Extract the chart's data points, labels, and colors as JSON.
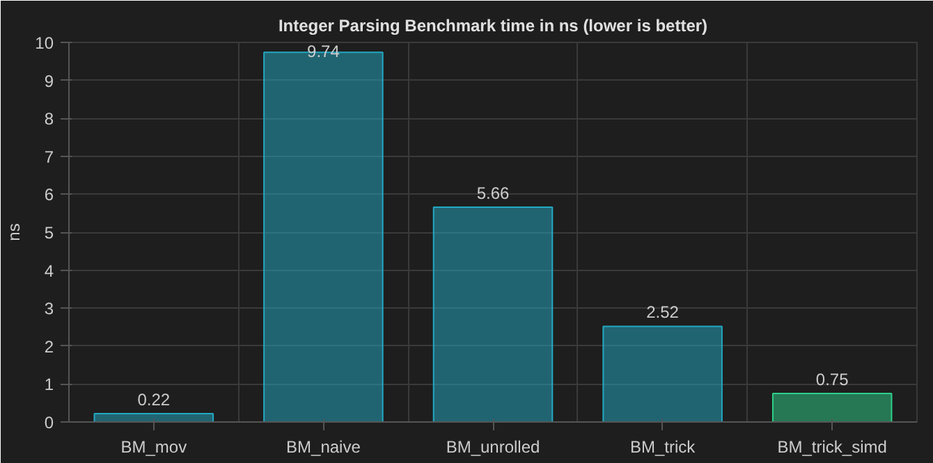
{
  "chart_data": {
    "type": "bar",
    "title": "Integer Parsing Benchmark time in ns (lower is better)",
    "ylabel": "ns",
    "categories": [
      "BM_mov",
      "BM_naive",
      "BM_unrolled",
      "BM_trick",
      "BM_trick_simd"
    ],
    "values": [
      0.22,
      9.74,
      5.66,
      2.52,
      0.75
    ],
    "colors": [
      "#23a9c4",
      "#23a9c4",
      "#23a9c4",
      "#23a9c4",
      "#2ed08a"
    ],
    "ylim": [
      0,
      10
    ],
    "yticks": [
      0,
      1,
      2,
      3,
      4,
      5,
      6,
      7,
      8,
      9,
      10
    ],
    "grid": true,
    "data_labels": true
  }
}
